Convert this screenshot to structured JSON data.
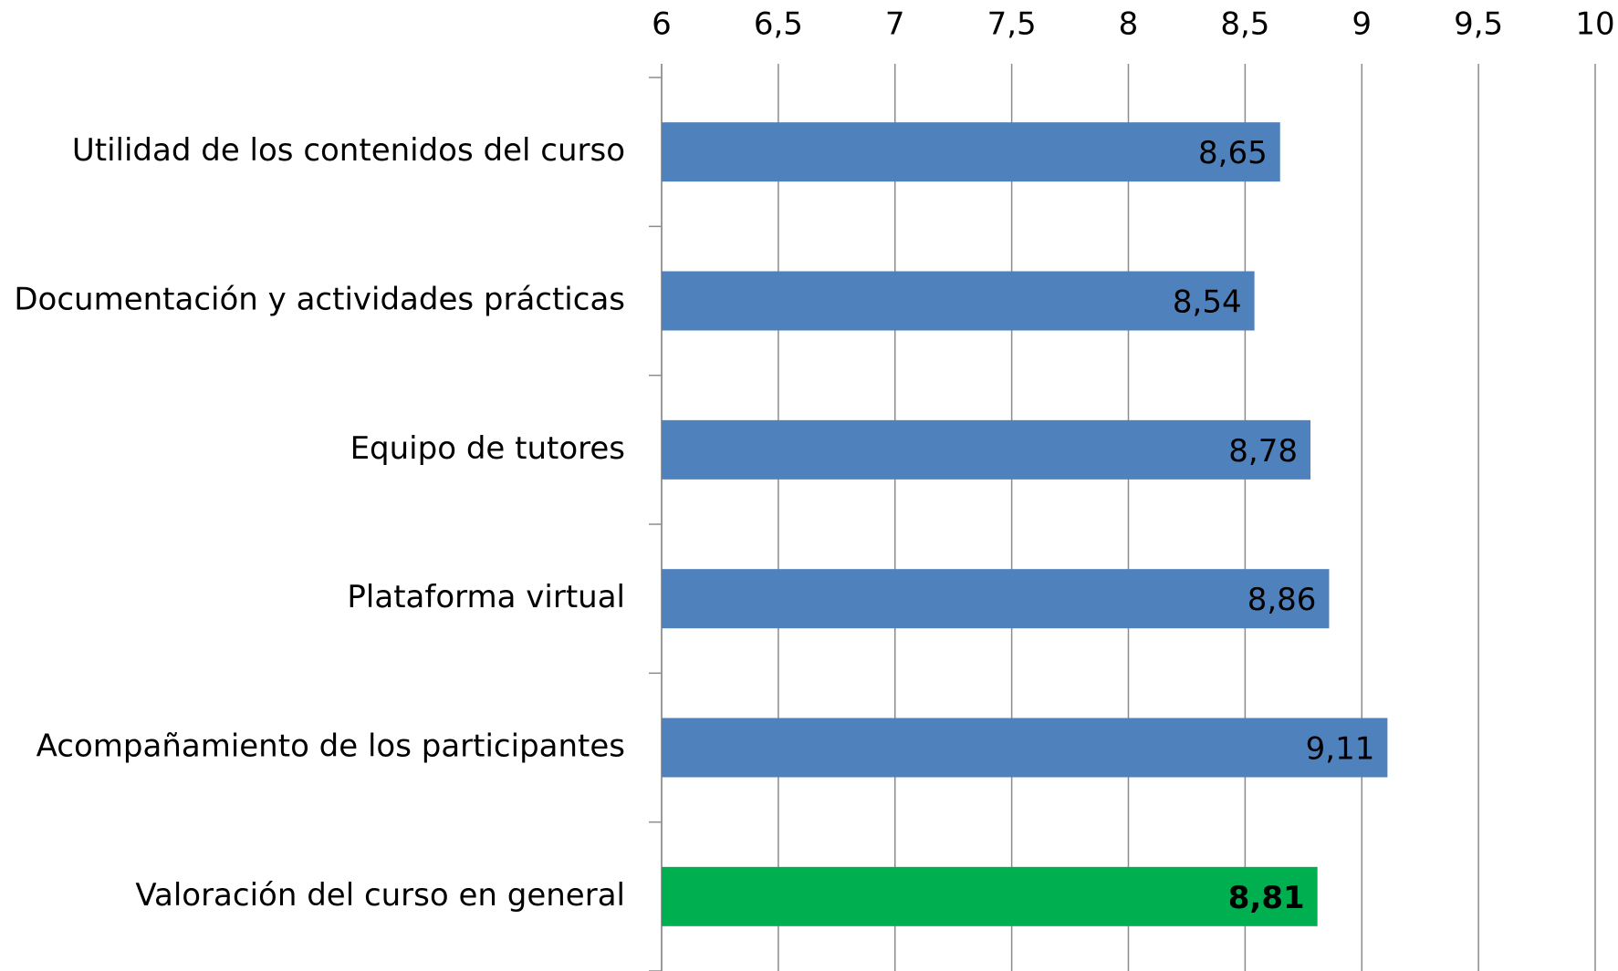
{
  "chart_data": {
    "type": "bar",
    "orientation": "horizontal",
    "categories": [
      "Utilidad de los contenidos del curso",
      "Documentación y actividades prácticas",
      "Equipo de tutores",
      "Plataforma virtual",
      "Acompañamiento de los participantes",
      "Valoración del curso en general"
    ],
    "values": [
      8.65,
      8.54,
      8.78,
      8.86,
      9.11,
      8.81
    ],
    "value_labels": [
      "8,65",
      "8,54",
      "8,78",
      "8,86",
      "9,11",
      "8,81"
    ],
    "colors": [
      "#4f81bd",
      "#4f81bd",
      "#4f81bd",
      "#4f81bd",
      "#4f81bd",
      "#00b050"
    ],
    "xlim": [
      6,
      10
    ],
    "xticks": [
      6,
      {
        "value": 6.5,
        "label": "6,5"
      },
      7,
      {
        "value": 7.5,
        "label": "7,5"
      },
      8,
      {
        "value": 8.5,
        "label": "8,5"
      },
      9,
      {
        "value": 9.5,
        "label": "9,5"
      },
      10
    ],
    "grid": true
  }
}
